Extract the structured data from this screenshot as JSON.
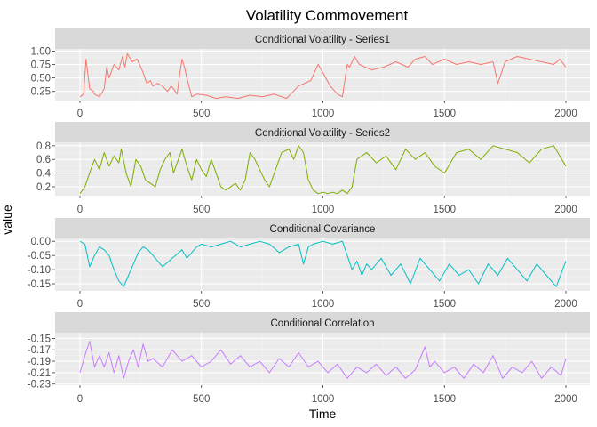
{
  "chart_data": {
    "type": "line",
    "title": "Volatility Commovement",
    "xlabel": "Time",
    "ylabel": "value",
    "xlim": [
      0,
      2000
    ],
    "x_ticks": [
      0,
      500,
      1000,
      1500,
      2000
    ],
    "x_tick_labels": [
      "0",
      "500",
      "1000",
      "1500",
      "2000"
    ],
    "colors": {
      "panel_bg": "#EBEBEB",
      "strip_bg": "#D9D9D9",
      "grid_major": "#FFFFFF",
      "grid_minor": "#F3F3F3"
    },
    "panels": [
      {
        "strip": "Conditional Volatility - Series1",
        "color": "#F8766D",
        "ylim": [
          0.08,
          1.04
        ],
        "y_ticks": [
          0.25,
          0.5,
          0.75,
          1.0
        ],
        "y_tick_labels": [
          "0.25",
          "0.50",
          "0.75",
          "1.00"
        ],
        "x": [
          0,
          15,
          25,
          40,
          55,
          60,
          80,
          100,
          110,
          120,
          140,
          160,
          175,
          185,
          195,
          215,
          235,
          250,
          260,
          275,
          290,
          300,
          320,
          340,
          350,
          360,
          375,
          385,
          400,
          410,
          420,
          430,
          440,
          460,
          480,
          520,
          560,
          600,
          650,
          700,
          750,
          800,
          850,
          900,
          950,
          980,
          1000,
          1030,
          1060,
          1080,
          1095,
          1100,
          1110,
          1130,
          1150,
          1200,
          1250,
          1300,
          1350,
          1380,
          1420,
          1450,
          1500,
          1550,
          1600,
          1650,
          1700,
          1720,
          1750,
          1800,
          1850,
          1900,
          1950,
          1975,
          2000
        ],
        "values": [
          0.15,
          0.2,
          0.85,
          0.3,
          0.25,
          0.2,
          0.15,
          0.3,
          0.7,
          0.5,
          0.75,
          0.65,
          0.9,
          0.7,
          0.95,
          0.8,
          0.85,
          0.7,
          0.6,
          0.4,
          0.45,
          0.35,
          0.4,
          0.35,
          0.3,
          0.25,
          0.35,
          0.3,
          0.2,
          0.55,
          0.85,
          0.7,
          0.5,
          0.15,
          0.2,
          0.18,
          0.12,
          0.15,
          0.12,
          0.18,
          0.15,
          0.2,
          0.12,
          0.35,
          0.45,
          0.75,
          0.6,
          0.35,
          0.2,
          0.15,
          0.6,
          0.75,
          0.7,
          0.9,
          0.75,
          0.65,
          0.7,
          0.8,
          0.7,
          0.85,
          0.9,
          0.75,
          0.85,
          0.75,
          0.8,
          0.75,
          0.8,
          0.4,
          0.8,
          0.9,
          0.85,
          0.8,
          0.75,
          0.85,
          0.7
        ]
      },
      {
        "strip": "Conditional Volatility - Series2",
        "color": "#7CAE00",
        "ylim": [
          0.07,
          0.85
        ],
        "y_ticks": [
          0.2,
          0.4,
          0.6,
          0.8
        ],
        "y_tick_labels": [
          "0.2",
          "0.4",
          "0.6",
          "0.8"
        ],
        "x": [
          0,
          20,
          40,
          60,
          80,
          100,
          120,
          140,
          160,
          170,
          190,
          210,
          230,
          250,
          270,
          290,
          310,
          330,
          350,
          370,
          385,
          400,
          420,
          440,
          460,
          480,
          500,
          520,
          540,
          560,
          580,
          600,
          620,
          640,
          660,
          680,
          700,
          720,
          740,
          760,
          780,
          800,
          830,
          860,
          880,
          900,
          920,
          940,
          960,
          980,
          1000,
          1020,
          1040,
          1060,
          1080,
          1100,
          1120,
          1140,
          1180,
          1220,
          1260,
          1300,
          1340,
          1380,
          1420,
          1460,
          1500,
          1550,
          1600,
          1650,
          1700,
          1750,
          1800,
          1850,
          1900,
          1950,
          2000
        ],
        "values": [
          0.1,
          0.2,
          0.4,
          0.6,
          0.45,
          0.7,
          0.5,
          0.65,
          0.55,
          0.75,
          0.4,
          0.2,
          0.6,
          0.5,
          0.3,
          0.25,
          0.2,
          0.45,
          0.6,
          0.7,
          0.4,
          0.55,
          0.75,
          0.5,
          0.3,
          0.6,
          0.45,
          0.35,
          0.6,
          0.4,
          0.2,
          0.15,
          0.2,
          0.25,
          0.15,
          0.3,
          0.7,
          0.6,
          0.45,
          0.3,
          0.2,
          0.4,
          0.7,
          0.75,
          0.6,
          0.8,
          0.7,
          0.3,
          0.15,
          0.1,
          0.12,
          0.1,
          0.12,
          0.1,
          0.15,
          0.1,
          0.2,
          0.6,
          0.7,
          0.55,
          0.65,
          0.45,
          0.75,
          0.6,
          0.7,
          0.5,
          0.4,
          0.7,
          0.75,
          0.6,
          0.8,
          0.75,
          0.7,
          0.55,
          0.75,
          0.8,
          0.5
        ]
      },
      {
        "strip": "Conditional Covariance",
        "color": "#00BFC4",
        "ylim": [
          -0.175,
          0.01
        ],
        "y_ticks": [
          0.0,
          -0.05,
          -0.1,
          -0.15
        ],
        "y_tick_labels": [
          "0.00",
          "-0.05",
          "-0.10",
          "-0.15"
        ],
        "x": [
          0,
          20,
          40,
          60,
          80,
          100,
          120,
          140,
          160,
          180,
          200,
          220,
          240,
          260,
          280,
          300,
          340,
          380,
          420,
          440,
          460,
          480,
          500,
          540,
          580,
          620,
          660,
          700,
          740,
          780,
          820,
          860,
          900,
          920,
          940,
          960,
          1000,
          1040,
          1080,
          1100,
          1120,
          1140,
          1160,
          1180,
          1200,
          1240,
          1280,
          1320,
          1360,
          1400,
          1440,
          1480,
          1520,
          1560,
          1600,
          1640,
          1680,
          1720,
          1760,
          1800,
          1840,
          1880,
          1920,
          1960,
          2000
        ],
        "values": [
          0.0,
          -0.01,
          -0.09,
          -0.05,
          -0.02,
          -0.03,
          -0.05,
          -0.1,
          -0.14,
          -0.16,
          -0.12,
          -0.08,
          -0.04,
          -0.02,
          -0.03,
          -0.05,
          -0.09,
          -0.06,
          -0.03,
          -0.06,
          -0.04,
          -0.02,
          -0.01,
          -0.02,
          -0.01,
          -0.0,
          -0.02,
          -0.01,
          -0.0,
          -0.01,
          -0.04,
          -0.02,
          -0.01,
          -0.08,
          -0.02,
          -0.01,
          -0.0,
          -0.01,
          -0.0,
          -0.05,
          -0.1,
          -0.07,
          -0.12,
          -0.08,
          -0.1,
          -0.06,
          -0.12,
          -0.08,
          -0.15,
          -0.06,
          -0.1,
          -0.14,
          -0.08,
          -0.12,
          -0.1,
          -0.15,
          -0.08,
          -0.12,
          -0.06,
          -0.1,
          -0.14,
          -0.08,
          -0.12,
          -0.16,
          -0.07
        ]
      },
      {
        "strip": "Conditional Correlation",
        "color": "#C77CFF",
        "ylim": [
          -0.232,
          -0.14
        ],
        "y_ticks": [
          -0.15,
          -0.17,
          -0.19,
          -0.21,
          -0.23
        ],
        "y_tick_labels": [
          "-0.15",
          "-0.17",
          "-0.19",
          "-0.21",
          "-0.23"
        ],
        "x": [
          0,
          20,
          40,
          60,
          80,
          100,
          120,
          140,
          160,
          180,
          200,
          220,
          240,
          260,
          280,
          300,
          340,
          380,
          420,
          460,
          500,
          540,
          580,
          620,
          660,
          700,
          740,
          780,
          820,
          860,
          900,
          940,
          980,
          1020,
          1060,
          1100,
          1140,
          1180,
          1220,
          1260,
          1300,
          1340,
          1380,
          1420,
          1440,
          1460,
          1500,
          1540,
          1580,
          1620,
          1660,
          1700,
          1740,
          1780,
          1820,
          1860,
          1900,
          1940,
          1980,
          2000
        ],
        "values": [
          -0.21,
          -0.18,
          -0.155,
          -0.2,
          -0.18,
          -0.2,
          -0.175,
          -0.21,
          -0.18,
          -0.22,
          -0.19,
          -0.17,
          -0.2,
          -0.16,
          -0.19,
          -0.185,
          -0.2,
          -0.17,
          -0.19,
          -0.18,
          -0.2,
          -0.19,
          -0.17,
          -0.195,
          -0.18,
          -0.2,
          -0.19,
          -0.21,
          -0.185,
          -0.2,
          -0.175,
          -0.2,
          -0.19,
          -0.21,
          -0.195,
          -0.22,
          -0.2,
          -0.21,
          -0.195,
          -0.215,
          -0.2,
          -0.22,
          -0.205,
          -0.165,
          -0.2,
          -0.19,
          -0.21,
          -0.2,
          -0.22,
          -0.195,
          -0.21,
          -0.18,
          -0.22,
          -0.2,
          -0.21,
          -0.19,
          -0.22,
          -0.2,
          -0.215,
          -0.185
        ]
      }
    ]
  }
}
